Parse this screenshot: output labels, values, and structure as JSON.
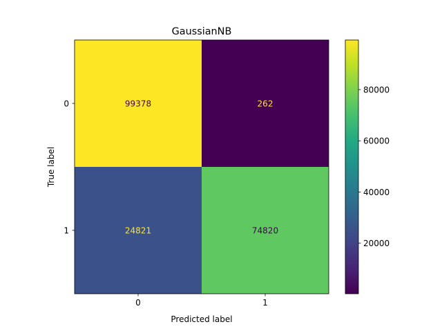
{
  "chart_data": {
    "type": "heatmap",
    "title": "GaussianNB",
    "xlabel": "Predicted label",
    "ylabel": "True label",
    "x_categories": [
      "0",
      "1"
    ],
    "y_categories": [
      "0",
      "1"
    ],
    "values": [
      [
        99378,
        262
      ],
      [
        24821,
        74820
      ]
    ],
    "colormap": "viridis",
    "color_range": [
      262,
      99378
    ],
    "colorbar_ticks": [
      {
        "value": 20000,
        "label": "20000"
      },
      {
        "value": 40000,
        "label": "40000"
      },
      {
        "value": 60000,
        "label": "60000"
      },
      {
        "value": 80000,
        "label": "80000"
      }
    ],
    "text_colors": {
      "on_bright": "#440154",
      "on_dark": "#fde725"
    }
  }
}
